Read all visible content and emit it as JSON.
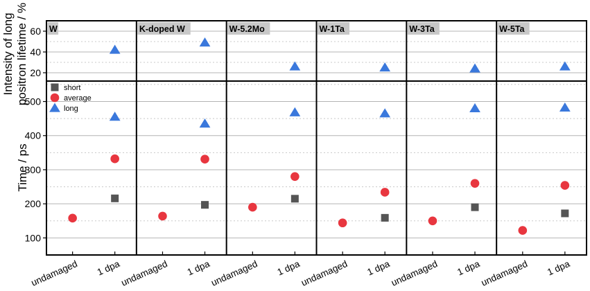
{
  "chart_data": {
    "type": "scatter",
    "ylabel_top_line1": "Intensity of long",
    "ylabel_top_line2": "positron lifetime / %",
    "ylabel_bottom": "Time / ps",
    "top_ylim": [
      12,
      70
    ],
    "top_yticks": [
      20,
      40,
      60
    ],
    "bottom_ylim": [
      50,
      560
    ],
    "bottom_yticks": [
      100,
      200,
      300,
      400,
      500
    ],
    "categories": [
      "undamaged",
      "1 dpa"
    ],
    "legend": {
      "position": "top-left",
      "entries": [
        {
          "name": "short",
          "marker": "square",
          "color": "#555555"
        },
        {
          "name": "average",
          "marker": "circle",
          "color": "#e8363f"
        },
        {
          "name": "long",
          "marker": "triangle",
          "color": "#3a78dc"
        }
      ]
    },
    "panels": [
      {
        "label": "W",
        "intensity_long": {
          "1 dpa": 42
        },
        "lifetime": {
          "short": {
            "1 dpa": 216
          },
          "average": {
            "undamaged": 158,
            "1 dpa": 332
          },
          "long": {
            "1 dpa": 455
          }
        }
      },
      {
        "label": "K-doped W",
        "intensity_long": {
          "1 dpa": 49
        },
        "lifetime": {
          "short": {
            "1 dpa": 197
          },
          "average": {
            "undamaged": 164,
            "1 dpa": 331
          },
          "long": {
            "1 dpa": 435
          }
        }
      },
      {
        "label": "W-5.2Mo",
        "intensity_long": {
          "1 dpa": 26
        },
        "lifetime": {
          "short": {
            "1 dpa": 215
          },
          "average": {
            "undamaged": 190,
            "1 dpa": 280
          },
          "long": {
            "1 dpa": 468
          }
        }
      },
      {
        "label": "W-1Ta",
        "intensity_long": {
          "1 dpa": 25
        },
        "lifetime": {
          "short": {
            "1 dpa": 159
          },
          "average": {
            "undamaged": 144,
            "1 dpa": 234
          },
          "long": {
            "1 dpa": 465
          }
        }
      },
      {
        "label": "W-3Ta",
        "intensity_long": {
          "1 dpa": 24
        },
        "lifetime": {
          "short": {
            "1 dpa": 190
          },
          "average": {
            "undamaged": 150,
            "1 dpa": 260
          },
          "long": {
            "1 dpa": 480
          }
        }
      },
      {
        "label": "W-5Ta",
        "intensity_long": {
          "1 dpa": 26
        },
        "lifetime": {
          "short": {
            "1 dpa": 172
          },
          "average": {
            "undamaged": 122,
            "1 dpa": 254
          },
          "long": {
            "1 dpa": 482
          }
        }
      }
    ]
  }
}
